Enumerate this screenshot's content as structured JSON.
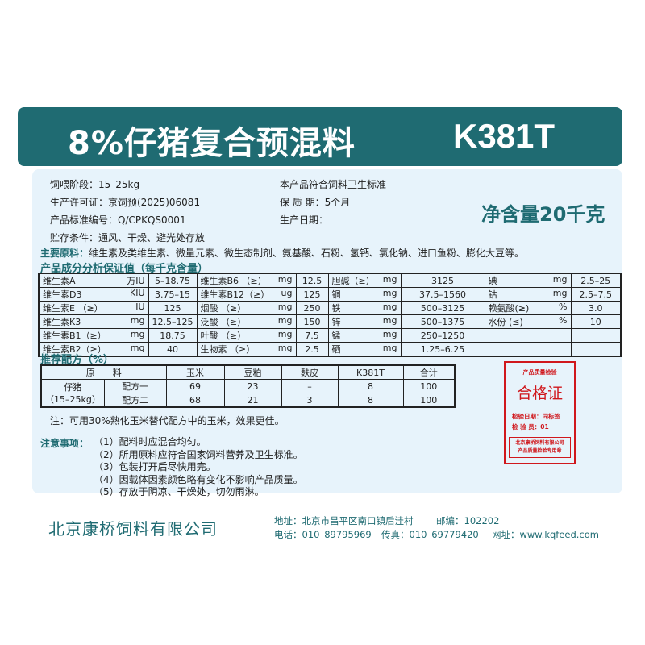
{
  "header": {
    "title": "8%仔猪复合预混料",
    "model": "K381T"
  },
  "info": {
    "stage": "饲喂阶段：15–25kg",
    "license": "生产许可证：京饲预(2025)06081",
    "standard": "产品标准编号：Q/CPKQS0001",
    "storage": "贮存条件：通风、干燥、避光处存放",
    "compliance": "本产品符合饲料卫生标准",
    "shelf_life": "保 质 期：5个月",
    "production_date": "生产日期：",
    "net_content": "净含量20千克"
  },
  "ingredients": {
    "label": "主要原料：",
    "text": "维生素及类维生素、微量元素、微生态制剂、氨基酸、石粉、氢钙、氯化钠、进口鱼粉、膨化大豆等。"
  },
  "analysis": {
    "title": "产品成分分析保证值（每千克含量）",
    "rows": [
      [
        [
          "维生素A",
          "万IU"
        ],
        "5–18.75",
        [
          "维生素B6 （≥）",
          "mg"
        ],
        "12.5",
        [
          "胆碱（≥）",
          "mg"
        ],
        "3125",
        [
          "碘",
          "mg"
        ],
        "2.5–25"
      ],
      [
        [
          "维生素D3",
          "KIU"
        ],
        "3.75–15",
        [
          "维生素B12（≥）",
          "ug"
        ],
        "125",
        [
          "铜",
          "mg"
        ],
        "37.5–1560",
        [
          "钴",
          "mg"
        ],
        "2.5–7.5"
      ],
      [
        [
          "维生素E （≥）",
          "IU"
        ],
        "125",
        [
          "烟酸 （≥）",
          "mg"
        ],
        "250",
        [
          "铁",
          "mg"
        ],
        "500–3125",
        [
          "赖氨酸(≥)",
          "%"
        ],
        "3.0"
      ],
      [
        [
          "维生素K3",
          "mg"
        ],
        "12.5–125",
        [
          "泛酸 （≥）",
          "mg"
        ],
        "150",
        [
          "锌",
          "mg"
        ],
        "500–1375",
        [
          "水份 (≤)",
          "%"
        ],
        "10"
      ],
      [
        [
          "维生素B1（≥）",
          "mg"
        ],
        "18.75",
        [
          "叶酸 （≥）",
          "mg"
        ],
        "7.5",
        [
          "锰",
          "mg"
        ],
        "250–1250",
        [
          "",
          ""
        ],
        ""
      ],
      [
        [
          "维生素B2（≥）",
          "mg"
        ],
        "40",
        [
          "生物素 （≥）",
          "mg"
        ],
        "2.5",
        [
          "硒",
          "mg"
        ],
        "1.25–6.25",
        [
          "",
          ""
        ],
        ""
      ]
    ]
  },
  "formula": {
    "title": "推荐配方（%）",
    "headers": [
      "原　　料",
      "玉米",
      "豆粕",
      "麸皮",
      "K381T",
      "合计"
    ],
    "group": "仔猪",
    "group_sub": "（15–25kg）",
    "rows": [
      [
        "配方一",
        "69",
        "23",
        "–",
        "8",
        "100"
      ],
      [
        "配方二",
        "68",
        "21",
        "3",
        "8",
        "100"
      ]
    ],
    "note": "注：可用30%熟化玉米替代配方中的玉米，效果更佳。"
  },
  "precautions": {
    "label": "注意事项：",
    "items": [
      "（1）配料时应混合均匀。",
      "（2）所用原料应符合国家饲料营养及卫生标准。",
      "（3）包装打开后尽快用完。",
      "（4）因载体因素颜色略有变化不影响产品质量。",
      "（5）存放于阴凉、干燥处，切勿雨淋。"
    ]
  },
  "stamp": {
    "top": "产品质量检验",
    "title": "合格证",
    "date": "检验日期：同标签",
    "inspector": "检 验 员：01",
    "seal1": "北京康桥饲料有限公司",
    "seal2": "产品质量检验专用章"
  },
  "footer": {
    "company": "北京康桥饲料有限公司",
    "address": "地址：北京市昌平区南口镇后洼村",
    "postcode": "邮编：102202",
    "phone": "电话：010–89795969",
    "fax": "传真：010–69779420",
    "website": "网址：www.kqfeed.com"
  },
  "colors": {
    "brand": "#1f6b72",
    "panel": "#e7f3fb",
    "stamp": "#d0171c"
  }
}
